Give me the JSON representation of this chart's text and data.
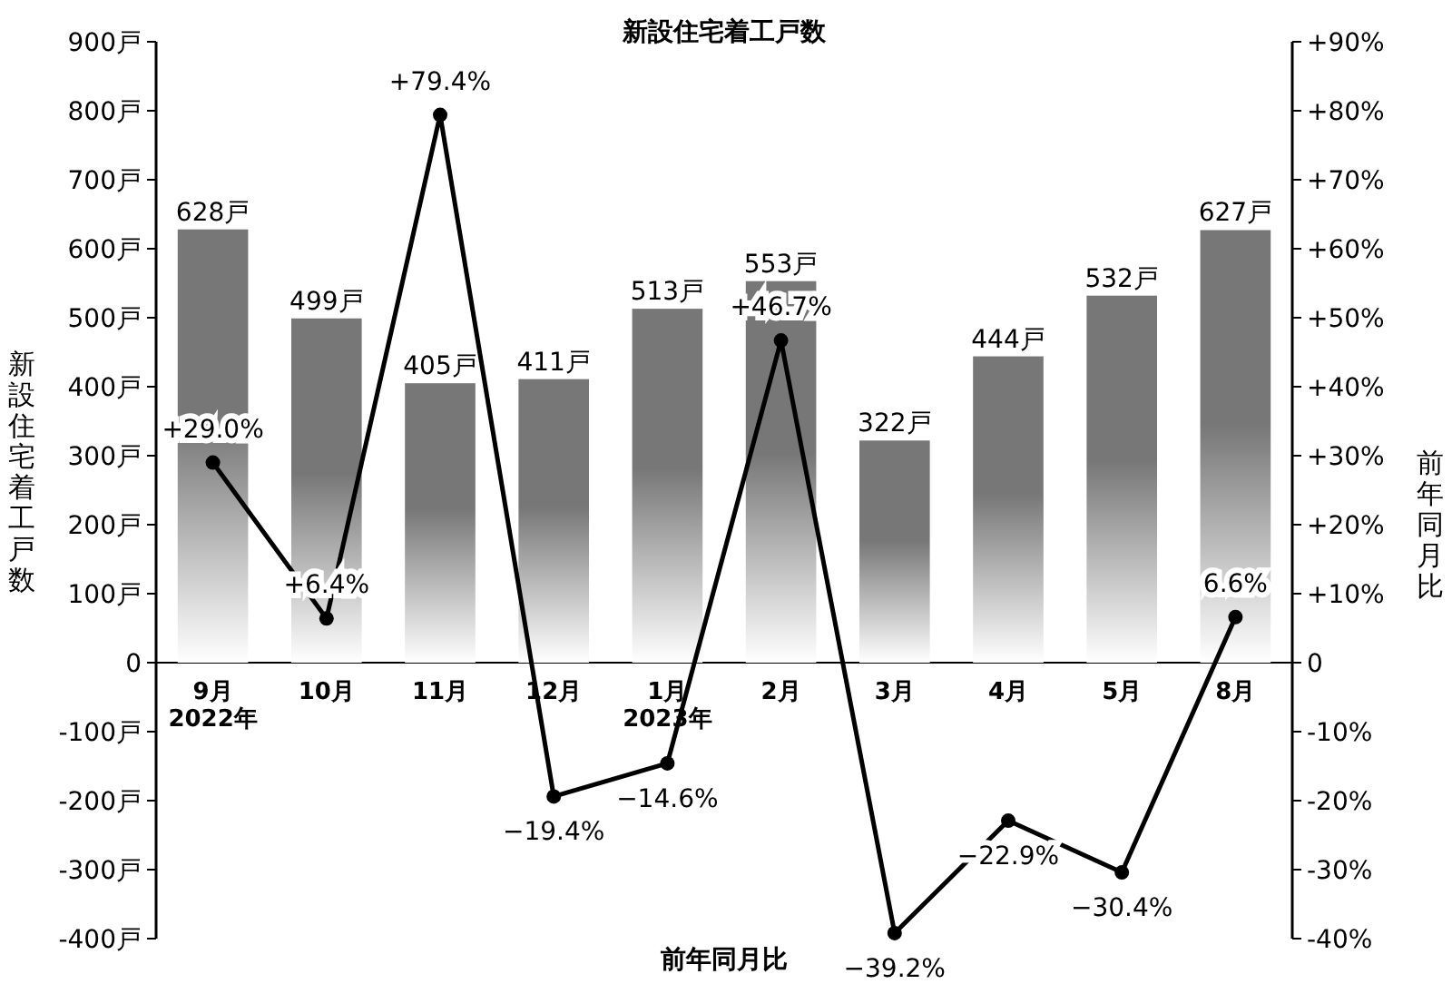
{
  "chart_data": {
    "type": "bar",
    "title": "新設住宅着工戸数",
    "xlabel": "前年同月比",
    "ylabel": "新設住宅着工戸数",
    "y2label": "前年同月比",
    "categories": [
      "9月\n2022年",
      "10月",
      "11月",
      "12月",
      "1月\n2023年",
      "2月",
      "3月",
      "4月",
      "5月",
      "8月"
    ],
    "series": [
      {
        "color": "#777777",
        "values": [
          628,
          499,
          405,
          411,
          513,
          553,
          322,
          444,
          532,
          627
        ],
        "value_labels": [
          "628戸",
          "499戸",
          "405戸",
          "411戸",
          "513戸",
          "553戸",
          "322戸",
          "444戸",
          "532戸",
          "627戸"
        ]
      },
      {
        "type": "line",
        "axis": "y2",
        "color": "#000000",
        "marker": "circle",
        "values": [
          29.0,
          6.4,
          79.4,
          -19.4,
          -14.6,
          46.7,
          -39.2,
          -22.9,
          -30.4,
          6.6
        ],
        "value_labels": [
          "+29.0%",
          "+6.4%",
          "+79.4%",
          "−19.4%",
          "−14.6%",
          "+46.7%",
          "−39.2%",
          "−22.9%",
          "−30.4%",
          "6.6%"
        ]
      }
    ],
    "ylim": [
      -400,
      900
    ],
    "yticks": [
      {
        "value": -400,
        "label": "-400戸"
      },
      {
        "value": -300,
        "label": "-300戸"
      },
      {
        "value": -200,
        "label": "-200戸"
      },
      {
        "value": -100,
        "label": "-100戸"
      },
      0,
      {
        "value": 100,
        "label": "100戸"
      },
      {
        "value": 200,
        "label": "200戸"
      },
      {
        "value": 300,
        "label": "300戸"
      },
      {
        "value": 400,
        "label": "400戸"
      },
      {
        "value": 500,
        "label": "500戸"
      },
      {
        "value": 600,
        "label": "600戸"
      },
      {
        "value": 700,
        "label": "700戸"
      },
      {
        "value": 800,
        "label": "800戸"
      },
      {
        "value": 900,
        "label": "900戸"
      }
    ],
    "y2lim": [
      -40,
      90
    ],
    "y2ticks": [
      {
        "value": -40,
        "label": "-40%"
      },
      {
        "value": -30,
        "label": "-30%"
      },
      {
        "value": -20,
        "label": "-20%"
      },
      {
        "value": -10,
        "label": "-10%"
      },
      0,
      {
        "value": 10,
        "label": "+10%"
      },
      {
        "value": 20,
        "label": "+20%"
      },
      {
        "value": 30,
        "label": "+30%"
      },
      {
        "value": 40,
        "label": "+40%"
      },
      {
        "value": 50,
        "label": "+50%"
      },
      {
        "value": 60,
        "label": "+60%"
      },
      {
        "value": 70,
        "label": "+70%"
      },
      {
        "value": 80,
        "label": "+80%"
      },
      {
        "value": 90,
        "label": "+90%"
      }
    ]
  }
}
